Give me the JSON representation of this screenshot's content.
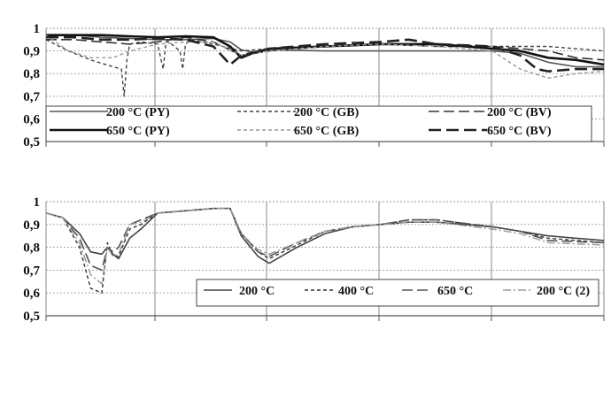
{
  "chart_data": [
    {
      "type": "line",
      "title": "",
      "xlabel": "",
      "ylabel": "",
      "ylim": [
        0.5,
        1
      ],
      "yticks": [
        "1",
        "0,9",
        "0,8",
        "0,7",
        "0,6",
        "0,5"
      ],
      "grid": true,
      "legend_position": "bottom",
      "series": [
        {
          "name": "200 °C (PY)",
          "color": "#555555",
          "dash": "solid",
          "x": [
            0,
            0.05,
            0.1,
            0.15,
            0.2,
            0.25,
            0.3,
            0.33,
            0.35,
            0.37,
            0.4,
            0.5,
            0.6,
            0.7,
            0.8,
            0.85,
            0.9,
            0.95,
            1.0
          ],
          "values": [
            0.97,
            0.97,
            0.96,
            0.955,
            0.95,
            0.95,
            0.955,
            0.94,
            0.905,
            0.895,
            0.905,
            0.9,
            0.9,
            0.9,
            0.9,
            0.89,
            0.85,
            0.83,
            0.83
          ]
        },
        {
          "name": "200 °C (GB)",
          "color": "#444444",
          "dash": "short",
          "x": [
            0,
            0.04,
            0.08,
            0.12,
            0.135,
            0.14,
            0.145,
            0.15,
            0.17,
            0.2,
            0.21,
            0.215,
            0.22,
            0.24,
            0.245,
            0.25,
            0.26,
            0.3,
            0.35,
            0.4,
            0.5,
            0.6,
            0.7,
            0.8,
            0.9,
            1.0
          ],
          "values": [
            0.95,
            0.9,
            0.86,
            0.83,
            0.82,
            0.7,
            0.86,
            0.93,
            0.94,
            0.93,
            0.82,
            0.94,
            0.94,
            0.9,
            0.82,
            0.93,
            0.95,
            0.93,
            0.9,
            0.91,
            0.92,
            0.93,
            0.93,
            0.92,
            0.92,
            0.9
          ]
        },
        {
          "name": "200 °C (BV)",
          "color": "#333333",
          "dash": "long",
          "x": [
            0,
            0.05,
            0.1,
            0.15,
            0.2,
            0.25,
            0.3,
            0.35,
            0.4,
            0.5,
            0.6,
            0.7,
            0.8,
            0.85,
            0.9,
            0.95,
            1.0
          ],
          "values": [
            0.95,
            0.95,
            0.94,
            0.93,
            0.94,
            0.96,
            0.94,
            0.88,
            0.9,
            0.92,
            0.93,
            0.92,
            0.92,
            0.91,
            0.9,
            0.87,
            0.86
          ]
        },
        {
          "name": "650 °C (PY)",
          "color": "#111111",
          "dash": "thick",
          "x": [
            0,
            0.05,
            0.1,
            0.15,
            0.2,
            0.25,
            0.3,
            0.33,
            0.35,
            0.37,
            0.4,
            0.5,
            0.6,
            0.65,
            0.7,
            0.8,
            0.85,
            0.9,
            0.95,
            1.0
          ],
          "values": [
            0.97,
            0.97,
            0.97,
            0.965,
            0.96,
            0.965,
            0.96,
            0.92,
            0.87,
            0.89,
            0.91,
            0.92,
            0.93,
            0.93,
            0.93,
            0.91,
            0.9,
            0.87,
            0.86,
            0.84
          ]
        },
        {
          "name": "650 °C (GB)",
          "color": "#999999",
          "dash": "short",
          "x": [
            0,
            0.04,
            0.08,
            0.12,
            0.15,
            0.2,
            0.25,
            0.3,
            0.35,
            0.4,
            0.5,
            0.6,
            0.7,
            0.8,
            0.85,
            0.9,
            0.95,
            1.0
          ],
          "values": [
            0.97,
            0.9,
            0.87,
            0.87,
            0.9,
            0.93,
            0.94,
            0.94,
            0.88,
            0.9,
            0.92,
            0.93,
            0.92,
            0.9,
            0.82,
            0.78,
            0.8,
            0.81
          ]
        },
        {
          "name": "650 °C (BV)",
          "color": "#222222",
          "dash": "longthick",
          "x": [
            0,
            0.05,
            0.1,
            0.15,
            0.2,
            0.25,
            0.3,
            0.33,
            0.35,
            0.4,
            0.5,
            0.6,
            0.65,
            0.7,
            0.8,
            0.85,
            0.88,
            0.9,
            0.95,
            1.0
          ],
          "values": [
            0.96,
            0.96,
            0.95,
            0.95,
            0.955,
            0.95,
            0.92,
            0.84,
            0.88,
            0.91,
            0.93,
            0.94,
            0.95,
            0.93,
            0.92,
            0.88,
            0.82,
            0.81,
            0.82,
            0.82
          ]
        }
      ]
    },
    {
      "type": "line",
      "title": "",
      "xlabel": "",
      "ylabel": "",
      "ylim": [
        0.5,
        1
      ],
      "yticks": [
        "1",
        "0,9",
        "0,8",
        "0,7",
        "0,6",
        "0,5"
      ],
      "grid": true,
      "legend_position": "bottom-right",
      "series": [
        {
          "name": "200 °C",
          "color": "#444444",
          "dash": "solid",
          "x": [
            0,
            0.03,
            0.06,
            0.08,
            0.1,
            0.11,
            0.12,
            0.13,
            0.15,
            0.17,
            0.2,
            0.25,
            0.3,
            0.33,
            0.35,
            0.38,
            0.4,
            0.45,
            0.5,
            0.55,
            0.6,
            0.65,
            0.7,
            0.8,
            0.85,
            0.9,
            1.0
          ],
          "values": [
            0.95,
            0.93,
            0.86,
            0.78,
            0.77,
            0.8,
            0.77,
            0.75,
            0.84,
            0.88,
            0.95,
            0.96,
            0.97,
            0.97,
            0.85,
            0.76,
            0.73,
            0.8,
            0.86,
            0.89,
            0.9,
            0.91,
            0.91,
            0.89,
            0.87,
            0.85,
            0.83
          ]
        },
        {
          "name": "400 °C",
          "color": "#333333",
          "dash": "short",
          "x": [
            0,
            0.03,
            0.06,
            0.08,
            0.1,
            0.11,
            0.12,
            0.13,
            0.15,
            0.17,
            0.2,
            0.25,
            0.3,
            0.33,
            0.35,
            0.38,
            0.4,
            0.45,
            0.5,
            0.55,
            0.6,
            0.65,
            0.7,
            0.8,
            0.85,
            0.9,
            1.0
          ],
          "values": [
            0.95,
            0.93,
            0.8,
            0.62,
            0.6,
            0.82,
            0.76,
            0.76,
            0.88,
            0.9,
            0.95,
            0.96,
            0.97,
            0.97,
            0.86,
            0.78,
            0.75,
            0.81,
            0.87,
            0.89,
            0.9,
            0.92,
            0.92,
            0.89,
            0.87,
            0.84,
            0.82
          ]
        },
        {
          "name": "650 °C",
          "color": "#555555",
          "dash": "long",
          "x": [
            0,
            0.03,
            0.06,
            0.08,
            0.1,
            0.11,
            0.12,
            0.13,
            0.15,
            0.17,
            0.2,
            0.25,
            0.3,
            0.33,
            0.35,
            0.38,
            0.4,
            0.45,
            0.5,
            0.55,
            0.6,
            0.65,
            0.7,
            0.8,
            0.85,
            0.9,
            1.0
          ],
          "values": [
            0.95,
            0.93,
            0.84,
            0.72,
            0.7,
            0.8,
            0.78,
            0.8,
            0.9,
            0.92,
            0.95,
            0.96,
            0.97,
            0.97,
            0.86,
            0.78,
            0.76,
            0.82,
            0.87,
            0.89,
            0.9,
            0.92,
            0.92,
            0.89,
            0.87,
            0.83,
            0.82
          ]
        },
        {
          "name": "200 °C (2)",
          "color": "#999999",
          "dash": "dashdot",
          "x": [
            0,
            0.03,
            0.06,
            0.08,
            0.1,
            0.11,
            0.12,
            0.13,
            0.15,
            0.17,
            0.2,
            0.25,
            0.3,
            0.33,
            0.35,
            0.38,
            0.4,
            0.45,
            0.5,
            0.55,
            0.6,
            0.65,
            0.7,
            0.8,
            0.85,
            0.9,
            1.0
          ],
          "values": [
            0.95,
            0.93,
            0.82,
            0.68,
            0.64,
            0.8,
            0.76,
            0.77,
            0.9,
            0.91,
            0.95,
            0.96,
            0.97,
            0.97,
            0.86,
            0.79,
            0.77,
            0.82,
            0.87,
            0.89,
            0.9,
            0.91,
            0.91,
            0.88,
            0.86,
            0.82,
            0.81
          ]
        }
      ]
    }
  ]
}
